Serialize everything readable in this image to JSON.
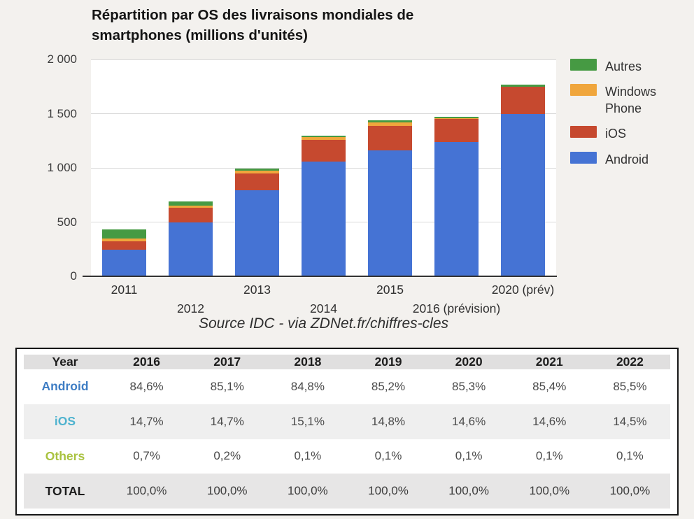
{
  "page": {
    "background": "#f3f1ee"
  },
  "chart": {
    "title_line1": "Répartition par OS des livraisons mondiales de",
    "title_line2": "smartphones (millions d'unités)",
    "source": "Source IDC - via ZDNet.fr/chiffres-cles",
    "y_tick_labels": [
      "0",
      "500",
      "1 000",
      "1 500",
      "2 000"
    ],
    "x_labels": [
      {
        "text": "2011",
        "row": 1
      },
      {
        "text": "2012",
        "row": 2
      },
      {
        "text": "2013",
        "row": 1
      },
      {
        "text": "2014",
        "row": 2
      },
      {
        "text": "2015",
        "row": 1
      },
      {
        "text": "2016 (prévision)",
        "row": 2
      },
      {
        "text": "2020 (prév)",
        "row": 1
      }
    ],
    "legend_order": [
      "Autres",
      "Windows Phone",
      "iOS",
      "Android"
    ]
  },
  "chart_data": {
    "type": "bar",
    "stacked": true,
    "title": "Répartition par OS des livraisons mondiales de smartphones (millions d'unités)",
    "categories": [
      "2011",
      "2012",
      "2013",
      "2014",
      "2015",
      "2016 (prévision)",
      "2020 (prév)"
    ],
    "series": [
      {
        "name": "Android",
        "color": "#4573d4",
        "values": [
          245,
          500,
          795,
          1060,
          1160,
          1240,
          1500
        ]
      },
      {
        "name": "iOS",
        "color": "#c6492f",
        "values": [
          80,
          130,
          155,
          200,
          230,
          210,
          250
        ]
      },
      {
        "name": "Windows Phone",
        "color": "#f0a63c",
        "values": [
          25,
          20,
          25,
          25,
          30,
          10,
          0
        ]
      },
      {
        "name": "Autres",
        "color": "#469a43",
        "values": [
          80,
          40,
          20,
          15,
          20,
          10,
          15
        ]
      }
    ],
    "ylim": [
      0,
      2000
    ],
    "yticks": [
      0,
      500,
      1000,
      1500,
      2000
    ],
    "grid": true,
    "legend_position": "right",
    "source": "Source IDC - via ZDNet.fr/chiffres-cles"
  },
  "table": {
    "header": [
      "Year",
      "2016",
      "2017",
      "2018",
      "2019",
      "2020",
      "2021",
      "2022"
    ],
    "rows": [
      {
        "label": "Android",
        "color": "#3e7dc4",
        "values": [
          "84,6%",
          "85,1%",
          "84,8%",
          "85,2%",
          "85,3%",
          "85,4%",
          "85,5%"
        ]
      },
      {
        "label": "iOS",
        "color": "#4fb3cf",
        "values": [
          "14,7%",
          "14,7%",
          "15,1%",
          "14,8%",
          "14,6%",
          "14,6%",
          "14,5%"
        ]
      },
      {
        "label": "Others",
        "color": "#a9c23f",
        "values": [
          "0,7%",
          "0,2%",
          "0,1%",
          "0,1%",
          "0,1%",
          "0,1%",
          "0,1%"
        ]
      },
      {
        "label": "TOTAL",
        "color": "#1d1d1d",
        "values": [
          "100,0%",
          "100,0%",
          "100,0%",
          "100,0%",
          "100,0%",
          "100,0%",
          "100,0%"
        ]
      }
    ]
  }
}
